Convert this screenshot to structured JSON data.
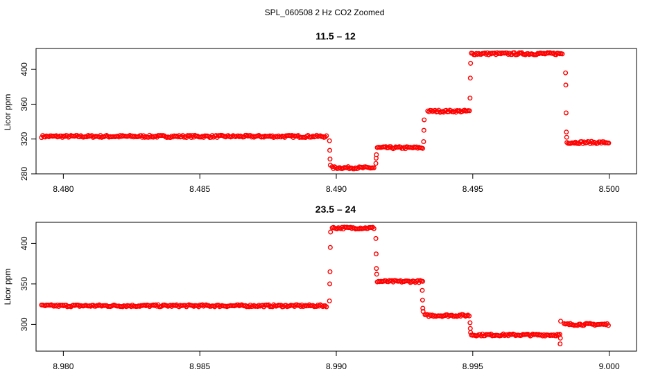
{
  "figure": {
    "suptitle": "SPL_060508 2 Hz CO2 Zoomed"
  },
  "chart_data": [
    {
      "type": "scatter",
      "title": "11.5 – 12",
      "xlabel": "",
      "ylabel": "Licor ppm",
      "xlim": [
        8.479,
        8.501
      ],
      "ylim": [
        280,
        424
      ],
      "xticks": [
        8.48,
        8.485,
        8.49,
        8.495,
        8.5
      ],
      "xtick_labels": [
        "8.480",
        "8.485",
        "8.490",
        "8.495",
        "8.500"
      ],
      "yticks": [
        280,
        320,
        360,
        400
      ],
      "ytick_labels": [
        "280",
        "320",
        "360",
        "400"
      ],
      "grid": false,
      "marker_color": "#ff0000",
      "marker": "open-circle",
      "segments": [
        {
          "x_start": 8.4792,
          "x_end": 8.48965,
          "level": 323
        },
        {
          "x_start": 8.48985,
          "x_end": 8.4914,
          "level": 287
        },
        {
          "x_start": 8.4915,
          "x_end": 8.4932,
          "level": 310
        },
        {
          "x_start": 8.49335,
          "x_end": 8.4949,
          "level": 352
        },
        {
          "x_start": 8.49495,
          "x_end": 8.4983,
          "level": 418
        },
        {
          "x_start": 8.49845,
          "x_end": 8.5,
          "level": 316
        }
      ],
      "transitions": [
        {
          "x": 8.48975,
          "values": [
            318,
            307,
            297,
            290
          ]
        },
        {
          "x": 8.49145,
          "values": [
            292,
            298,
            302
          ]
        },
        {
          "x": 8.4932,
          "values": [
            317,
            330,
            342
          ]
        },
        {
          "x": 8.4949,
          "values": [
            367,
            390,
            407
          ]
        },
        {
          "x": 8.4984,
          "values": [
            396,
            382,
            350,
            328,
            322
          ]
        }
      ]
    },
    {
      "type": "scatter",
      "title": "23.5 – 24",
      "xlabel": "",
      "ylabel": "Licor ppm",
      "xlim": [
        8.979,
        9.001
      ],
      "ylim": [
        267,
        426
      ],
      "xticks": [
        8.98,
        8.985,
        8.99,
        8.995,
        9.0
      ],
      "xtick_labels": [
        "8.980",
        "8.985",
        "8.990",
        "8.995",
        "9.000"
      ],
      "yticks": [
        300,
        350,
        400
      ],
      "ytick_labels": [
        "300",
        "350",
        "400"
      ],
      "grid": false,
      "marker_color": "#ff0000",
      "marker": "open-circle",
      "segments": [
        {
          "x_start": 8.9792,
          "x_end": 8.98965,
          "level": 323
        },
        {
          "x_start": 8.98985,
          "x_end": 8.9914,
          "level": 419
        },
        {
          "x_start": 8.9915,
          "x_end": 8.9932,
          "level": 353
        },
        {
          "x_start": 8.99325,
          "x_end": 8.9949,
          "level": 311
        },
        {
          "x_start": 8.99495,
          "x_end": 8.9982,
          "level": 287
        },
        {
          "x_start": 8.99835,
          "x_end": 9.0,
          "level": 300
        }
      ],
      "transitions": [
        {
          "x": 8.98975,
          "values": [
            329,
            350,
            365,
            395,
            414
          ]
        },
        {
          "x": 8.99145,
          "values": [
            406,
            387,
            369,
            362
          ]
        },
        {
          "x": 8.99315,
          "values": [
            342,
            330,
            320,
            316
          ]
        },
        {
          "x": 8.9949,
          "values": [
            302,
            295,
            290
          ]
        },
        {
          "x": 8.9982,
          "values": [
            276,
            283,
            304
          ]
        }
      ]
    }
  ]
}
